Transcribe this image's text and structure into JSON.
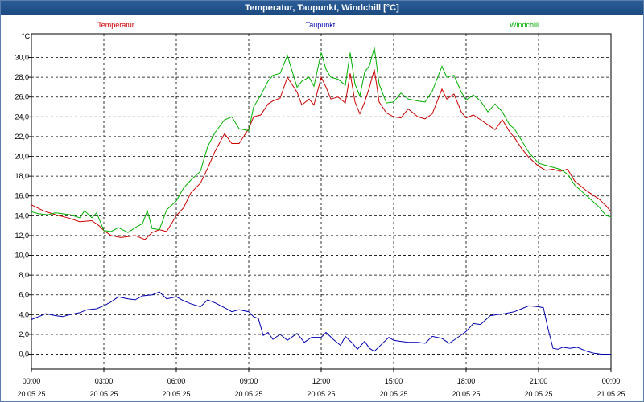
{
  "window": {
    "title": "Temperatur, Taupunkt, Windchill [°C]"
  },
  "colors": {
    "temperature": "#cc0000",
    "dewpoint": "#0000b0",
    "windchill": "#00b000"
  },
  "chart_data": {
    "type": "line",
    "title": "Temperatur, Taupunkt, Windchill [°C]",
    "ylabel": "°C",
    "ylim": [
      -1.5,
      32.4
    ],
    "yticks": [
      "0,0",
      "2,0",
      "4,0",
      "6,0",
      "8,0",
      "10,0",
      "12,0",
      "14,0",
      "16,0",
      "18,0",
      "20,0",
      "22,0",
      "24,0",
      "26,0",
      "28,0",
      "30,0"
    ],
    "xlim": [
      0,
      24
    ],
    "xticks": [
      {
        "time": "00:00",
        "date": "20.05.25"
      },
      {
        "time": "03:00",
        "date": "20.05.25"
      },
      {
        "time": "06:00",
        "date": "20.05.25"
      },
      {
        "time": "09:00",
        "date": "20.05.25"
      },
      {
        "time": "12:00",
        "date": "20.05.25"
      },
      {
        "time": "15:00",
        "date": "20.05.25"
      },
      {
        "time": "18:00",
        "date": "20.05.25"
      },
      {
        "time": "21:00",
        "date": "20.05.25"
      },
      {
        "time": "00:00",
        "date": "21.05.25"
      }
    ],
    "grid": true,
    "legend_position": "top",
    "series": [
      {
        "name": "Temperatur",
        "color": "#cc0000",
        "points": [
          [
            0,
            15.1
          ],
          [
            0.5,
            14.5
          ],
          [
            1,
            14.1
          ],
          [
            1.5,
            13.8
          ],
          [
            2,
            13.4
          ],
          [
            2.5,
            13.5
          ],
          [
            2.8,
            13.0
          ],
          [
            3,
            12.5
          ],
          [
            3.3,
            12.0
          ],
          [
            3.7,
            11.8
          ],
          [
            4,
            11.9
          ],
          [
            4.3,
            12.0
          ],
          [
            4.7,
            11.6
          ],
          [
            5,
            12.3
          ],
          [
            5.3,
            12.6
          ],
          [
            5.6,
            12.4
          ],
          [
            6,
            14.0
          ],
          [
            6.3,
            14.8
          ],
          [
            6.6,
            16.3
          ],
          [
            7,
            17.3
          ],
          [
            7.3,
            18.8
          ],
          [
            7.6,
            20.5
          ],
          [
            8,
            22.3
          ],
          [
            8.3,
            21.3
          ],
          [
            8.6,
            21.3
          ],
          [
            9,
            22.8
          ],
          [
            9.2,
            24.0
          ],
          [
            9.5,
            24.2
          ],
          [
            9.8,
            25.3
          ],
          [
            10,
            25.6
          ],
          [
            10.3,
            25.9
          ],
          [
            10.6,
            28.0
          ],
          [
            11,
            26.5
          ],
          [
            11.2,
            25.2
          ],
          [
            11.5,
            25.8
          ],
          [
            11.7,
            25.2
          ],
          [
            12,
            28.0
          ],
          [
            12.2,
            27.0
          ],
          [
            12.4,
            25.8
          ],
          [
            12.7,
            26.0
          ],
          [
            13,
            25.4
          ],
          [
            13.2,
            28.4
          ],
          [
            13.4,
            25.5
          ],
          [
            13.6,
            24.3
          ],
          [
            13.8,
            25.5
          ],
          [
            14,
            27.0
          ],
          [
            14.2,
            28.8
          ],
          [
            14.4,
            25.5
          ],
          [
            14.7,
            24.4
          ],
          [
            15,
            24.0
          ],
          [
            15.3,
            23.9
          ],
          [
            15.6,
            24.8
          ],
          [
            16,
            24.0
          ],
          [
            16.3,
            23.8
          ],
          [
            16.6,
            24.3
          ],
          [
            17,
            26.8
          ],
          [
            17.2,
            25.8
          ],
          [
            17.5,
            26.3
          ],
          [
            17.8,
            24.5
          ],
          [
            18,
            23.9
          ],
          [
            18.3,
            24.2
          ],
          [
            18.6,
            23.7
          ],
          [
            18.9,
            23.2
          ],
          [
            19.2,
            22.7
          ],
          [
            19.5,
            23.7
          ],
          [
            19.8,
            22.5
          ],
          [
            20,
            21.9
          ],
          [
            20.3,
            20.8
          ],
          [
            20.6,
            19.9
          ],
          [
            21,
            19.0
          ],
          [
            21.3,
            18.6
          ],
          [
            21.6,
            18.7
          ],
          [
            21.9,
            18.5
          ],
          [
            22.2,
            18.7
          ],
          [
            22.5,
            17.5
          ],
          [
            23,
            16.5
          ],
          [
            23.5,
            15.7
          ],
          [
            23.8,
            15.0
          ],
          [
            24,
            14.4
          ]
        ]
      },
      {
        "name": "Taupunkt",
        "color": "#0000b0",
        "points": [
          [
            0,
            3.5
          ],
          [
            0.3,
            3.8
          ],
          [
            0.6,
            4.1
          ],
          [
            1,
            3.9
          ],
          [
            1.3,
            3.8
          ],
          [
            1.6,
            4.0
          ],
          [
            2,
            4.2
          ],
          [
            2.3,
            4.5
          ],
          [
            2.7,
            4.6
          ],
          [
            3,
            4.9
          ],
          [
            3.3,
            5.3
          ],
          [
            3.6,
            5.8
          ],
          [
            4,
            5.6
          ],
          [
            4.3,
            5.5
          ],
          [
            4.6,
            5.9
          ],
          [
            5,
            6.0
          ],
          [
            5.3,
            6.3
          ],
          [
            5.6,
            5.6
          ],
          [
            6,
            5.8
          ],
          [
            6.3,
            5.4
          ],
          [
            6.6,
            5.1
          ],
          [
            7,
            4.8
          ],
          [
            7.3,
            5.5
          ],
          [
            7.6,
            5.2
          ],
          [
            8,
            4.7
          ],
          [
            8.3,
            4.3
          ],
          [
            8.6,
            4.5
          ],
          [
            9,
            4.3
          ],
          [
            9.2,
            3.8
          ],
          [
            9.4,
            3.6
          ],
          [
            9.6,
            1.9
          ],
          [
            9.8,
            2.2
          ],
          [
            10,
            1.5
          ],
          [
            10.3,
            2.0
          ],
          [
            10.6,
            1.4
          ],
          [
            11,
            2.1
          ],
          [
            11.3,
            1.2
          ],
          [
            11.6,
            1.7
          ],
          [
            12,
            1.7
          ],
          [
            12.2,
            2.2
          ],
          [
            12.5,
            1.5
          ],
          [
            12.8,
            0.9
          ],
          [
            13,
            1.8
          ],
          [
            13.3,
            1.1
          ],
          [
            13.5,
            0.5
          ],
          [
            13.8,
            1.3
          ],
          [
            14,
            0.6
          ],
          [
            14.2,
            0.3
          ],
          [
            14.5,
            1.0
          ],
          [
            14.8,
            1.7
          ],
          [
            15,
            1.4
          ],
          [
            15.3,
            1.3
          ],
          [
            15.6,
            1.2
          ],
          [
            16,
            1.2
          ],
          [
            16.3,
            1.1
          ],
          [
            16.6,
            1.8
          ],
          [
            17,
            1.6
          ],
          [
            17.3,
            1.1
          ],
          [
            17.6,
            1.6
          ],
          [
            18,
            2.3
          ],
          [
            18.3,
            3.1
          ],
          [
            18.6,
            3.0
          ],
          [
            19,
            3.9
          ],
          [
            19.3,
            4.0
          ],
          [
            19.6,
            4.1
          ],
          [
            20,
            4.3
          ],
          [
            20.3,
            4.6
          ],
          [
            20.6,
            4.9
          ],
          [
            21,
            4.8
          ],
          [
            21.2,
            4.7
          ],
          [
            21.4,
            2.5
          ],
          [
            21.6,
            0.6
          ],
          [
            21.8,
            0.5
          ],
          [
            22,
            0.7
          ],
          [
            22.3,
            0.6
          ],
          [
            22.6,
            0.7
          ],
          [
            23,
            0.3
          ],
          [
            23.3,
            0.1
          ],
          [
            23.6,
            0.0
          ],
          [
            24,
            0.0
          ]
        ]
      },
      {
        "name": "Windchill",
        "color": "#00b000",
        "points": [
          [
            0,
            14.4
          ],
          [
            0.3,
            14.2
          ],
          [
            0.7,
            14.1
          ],
          [
            1,
            14.3
          ],
          [
            1.3,
            14.2
          ],
          [
            1.6,
            14.1
          ],
          [
            2,
            13.8
          ],
          [
            2.2,
            14.5
          ],
          [
            2.5,
            13.8
          ],
          [
            2.7,
            14.3
          ],
          [
            3,
            12.5
          ],
          [
            3.3,
            12.4
          ],
          [
            3.6,
            12.8
          ],
          [
            4,
            12.3
          ],
          [
            4.3,
            12.8
          ],
          [
            4.6,
            13.2
          ],
          [
            4.8,
            14.5
          ],
          [
            5,
            12.7
          ],
          [
            5.3,
            12.6
          ],
          [
            5.6,
            14.6
          ],
          [
            6,
            15.5
          ],
          [
            6.3,
            16.8
          ],
          [
            6.6,
            17.6
          ],
          [
            7,
            18.5
          ],
          [
            7.3,
            21.0
          ],
          [
            7.6,
            22.4
          ],
          [
            8,
            23.7
          ],
          [
            8.3,
            24.0
          ],
          [
            8.6,
            22.8
          ],
          [
            9,
            22.6
          ],
          [
            9.2,
            25.0
          ],
          [
            9.5,
            26.2
          ],
          [
            9.8,
            27.6
          ],
          [
            10,
            28.2
          ],
          [
            10.3,
            28.4
          ],
          [
            10.6,
            30.2
          ],
          [
            11,
            27.0
          ],
          [
            11.2,
            27.6
          ],
          [
            11.5,
            28.0
          ],
          [
            11.7,
            27.1
          ],
          [
            12,
            30.5
          ],
          [
            12.2,
            28.8
          ],
          [
            12.4,
            28.0
          ],
          [
            12.7,
            27.8
          ],
          [
            13,
            27.2
          ],
          [
            13.2,
            30.5
          ],
          [
            13.4,
            27.3
          ],
          [
            13.6,
            26.1
          ],
          [
            13.8,
            28.5
          ],
          [
            14,
            29.2
          ],
          [
            14.2,
            31.0
          ],
          [
            14.4,
            27.3
          ],
          [
            14.7,
            25.4
          ],
          [
            15,
            25.5
          ],
          [
            15.3,
            26.4
          ],
          [
            15.6,
            25.8
          ],
          [
            16,
            25.6
          ],
          [
            16.3,
            25.5
          ],
          [
            16.6,
            26.6
          ],
          [
            17,
            29.1
          ],
          [
            17.2,
            28.0
          ],
          [
            17.5,
            28.2
          ],
          [
            17.8,
            26.5
          ],
          [
            18,
            25.7
          ],
          [
            18.3,
            26.2
          ],
          [
            18.6,
            25.6
          ],
          [
            18.9,
            24.5
          ],
          [
            19.2,
            25.3
          ],
          [
            19.5,
            24.5
          ],
          [
            19.8,
            23.2
          ],
          [
            20,
            22.8
          ],
          [
            20.3,
            21.6
          ],
          [
            20.6,
            20.4
          ],
          [
            21,
            19.3
          ],
          [
            21.3,
            19.1
          ],
          [
            21.6,
            18.9
          ],
          [
            21.9,
            18.7
          ],
          [
            22.2,
            18.2
          ],
          [
            22.5,
            17.1
          ],
          [
            23,
            16.0
          ],
          [
            23.5,
            14.9
          ],
          [
            23.8,
            14.0
          ],
          [
            24,
            13.9
          ]
        ]
      }
    ]
  }
}
